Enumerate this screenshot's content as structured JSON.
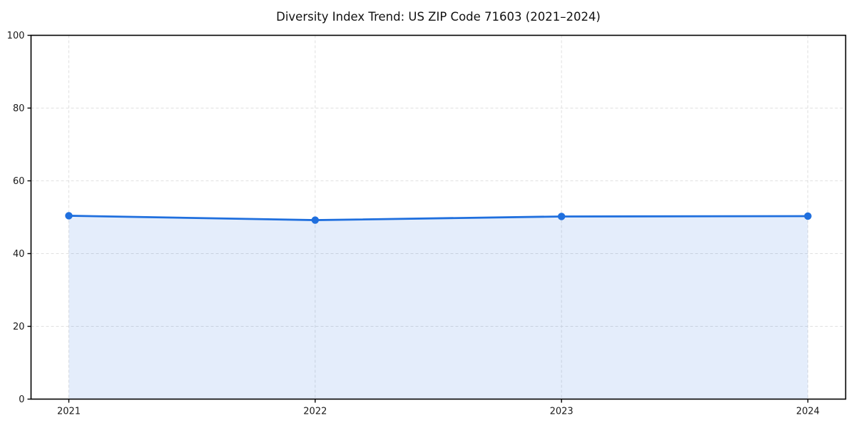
{
  "chart_data": {
    "type": "area",
    "title": "Diversity Index Trend: US ZIP Code 71603 (2021–2024)",
    "categories": [
      "2021",
      "2022",
      "2023",
      "2024"
    ],
    "series": [
      {
        "name": "Diversity Index",
        "values": [
          50.4,
          49.2,
          50.2,
          50.3
        ]
      }
    ],
    "xlabel": "",
    "ylabel": "",
    "ylim": [
      0,
      100
    ],
    "yticks": [
      0,
      20,
      40,
      60,
      80,
      100
    ],
    "grid": true,
    "grid_style": "dashed",
    "legend_position": "none",
    "colors": {
      "line": "#1f6fde",
      "marker": "#1f6fde",
      "fill_rgb": "31,111,222",
      "fill_alpha": 0.12,
      "grid": "#e0e0e0",
      "spine": "#000000",
      "tick_text": "#1a1a1a",
      "background": "#ffffff"
    }
  }
}
